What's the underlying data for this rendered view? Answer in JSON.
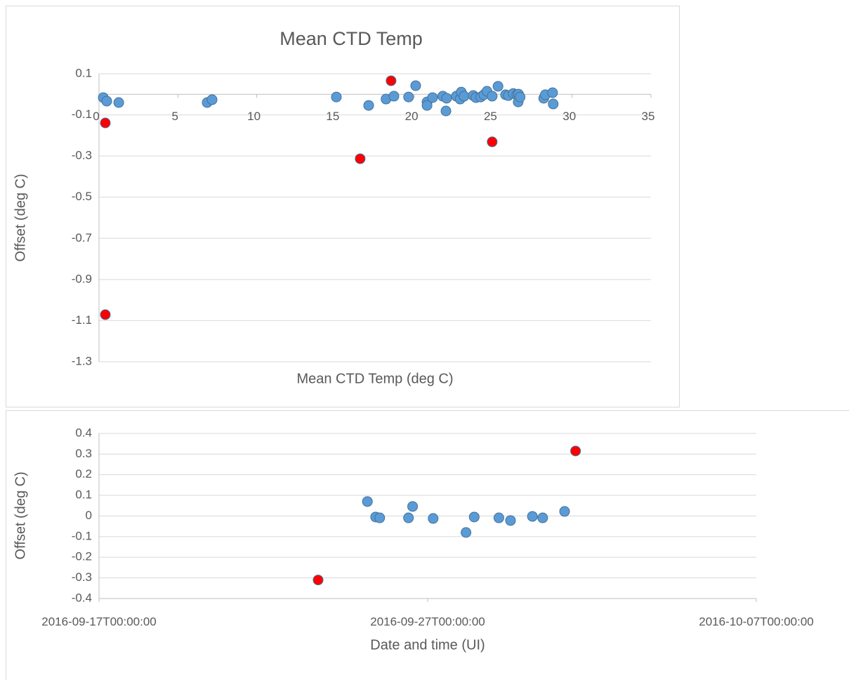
{
  "chart_data": [
    {
      "type": "scatter",
      "title": "Mean CTD Temp",
      "x_label": "Mean CTD Temp (deg C)",
      "y_label": "Offset (deg C)",
      "xlim": [
        0,
        35
      ],
      "xticks": [
        0,
        5,
        10,
        15,
        20,
        25,
        30,
        35
      ],
      "ylim": [
        -1.3,
        0.1
      ],
      "yticks": [
        -1.3,
        -1.1,
        -0.9,
        -0.7,
        -0.5,
        -0.3,
        -0.1,
        0.1
      ],
      "grid": true,
      "series": [
        {
          "color": "#5b9bd5",
          "x": [
            0.27,
            0.49,
            1.25,
            6.86,
            7.17,
            15.05,
            17.1,
            18.2,
            18.7,
            19.63,
            20.08,
            20.8,
            20.8,
            21.15,
            21.8,
            22.04,
            22.0,
            22.66,
            22.9,
            22.97,
            23.15,
            23.73,
            23.9,
            24.2,
            24.4,
            24.6,
            24.93,
            25.3,
            25.78,
            25.96,
            26.27,
            26.5,
            26.6,
            26.58,
            26.7,
            28.2,
            28.3,
            28.76,
            28.8
          ],
          "values": [
            -0.016,
            -0.033,
            -0.04,
            -0.04,
            -0.026,
            -0.013,
            -0.054,
            -0.023,
            -0.009,
            -0.013,
            0.042,
            -0.037,
            -0.054,
            -0.016,
            -0.009,
            -0.019,
            -0.081,
            -0.009,
            -0.023,
            0.011,
            -0.009,
            -0.006,
            -0.016,
            -0.013,
            -0.002,
            0.015,
            -0.009,
            0.039,
            -0.002,
            -0.006,
            0.004,
            -0.002,
            0.001,
            -0.037,
            -0.013,
            -0.019,
            -0.002,
            0.008,
            -0.047
          ]
        },
        {
          "color": "#ff0000",
          "x": [
            0.4,
            0.4,
            16.56,
            18.52,
            24.93
          ],
          "values": [
            -0.139,
            -1.071,
            -0.313,
            0.066,
            -0.231
          ]
        }
      ]
    },
    {
      "type": "scatter",
      "x_label": "Date and time (UI)",
      "y_label": "Offset (deg C)",
      "xlim": [
        "2016-09-17T00:00:00",
        "2016-10-07T00:00:00"
      ],
      "xticks": [
        "2016-09-17T00:00:00",
        "2016-09-27T00:00:00",
        "2016-10-07T00:00:00"
      ],
      "ylim": [
        -0.4,
        0.4
      ],
      "yticks": [
        -0.4,
        -0.3,
        -0.2,
        -0.1,
        0,
        0.1,
        0.2,
        0.3,
        0.4
      ],
      "grid": true,
      "series": [
        {
          "color": "#5b9bd5",
          "x": [
            "2016-09-25T04:00:00",
            "2016-09-25T10:00:00",
            "2016-09-25T13:00:00",
            "2016-09-26T10:00:00",
            "2016-09-26T13:00:00",
            "2016-09-27T04:00:00",
            "2016-09-28T04:00:00",
            "2016-09-28T10:00:00",
            "2016-09-29T04:00:00",
            "2016-09-29T12:30:00",
            "2016-09-30T04:30:00",
            "2016-09-30T12:00:00",
            "2016-10-01T04:00:00"
          ],
          "values": [
            0.07,
            -0.005,
            -0.009,
            -0.009,
            0.046,
            -0.012,
            -0.08,
            -0.005,
            -0.009,
            -0.022,
            -0.002,
            -0.009,
            0.022
          ]
        },
        {
          "color": "#ff0000",
          "x": [
            "2016-09-23T16:00:00",
            "2016-10-01T12:00:00"
          ],
          "values": [
            -0.31,
            0.315
          ]
        }
      ]
    }
  ]
}
